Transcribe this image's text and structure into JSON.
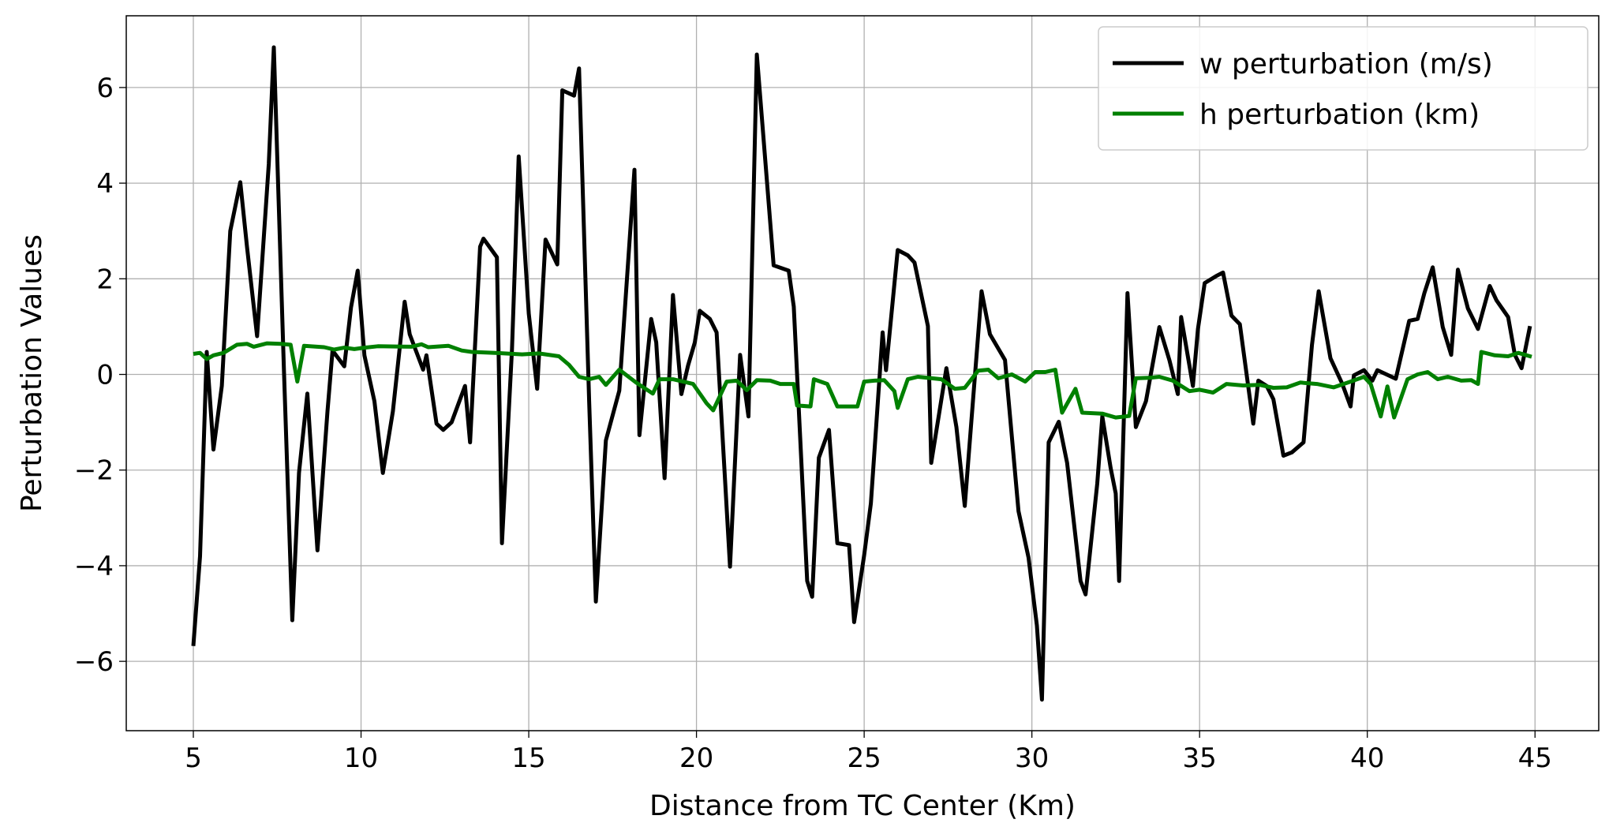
{
  "chart_data": {
    "type": "line",
    "xlabel": "Distance from TC Center (Km)",
    "ylabel": "Perturbation Values",
    "xlim": [
      3.0,
      46.9
    ],
    "ylim": [
      -7.45,
      7.5
    ],
    "xticks": [
      5,
      10,
      15,
      20,
      25,
      30,
      35,
      40,
      45
    ],
    "yticks": [
      {
        "value": -6,
        "label": "−6"
      },
      {
        "value": -4,
        "label": "−4"
      },
      {
        "value": -2,
        "label": "−2"
      },
      0,
      2,
      4,
      6
    ],
    "grid": true,
    "legend": "upper right",
    "series": [
      {
        "name": "w perturbation (m/s)",
        "color": "#000000",
        "x": [
          5,
          5.2,
          5.4,
          5.6,
          5.85,
          6.1,
          6.4,
          6.6,
          6.9,
          7.25,
          7.4,
          7.7,
          7.95,
          8.15,
          8.4,
          8.7,
          9.0,
          9.15,
          9.5,
          9.7,
          9.9,
          10.1,
          10.4,
          10.65,
          10.95,
          11.3,
          11.45,
          11.85,
          11.95,
          12.25,
          12.45,
          12.7,
          13.1,
          13.25,
          13.55,
          13.65,
          14.05,
          14.2,
          14.5,
          14.7,
          15.0,
          15.25,
          15.5,
          15.85,
          16.0,
          16.35,
          16.5,
          16.8,
          17.0,
          17.3,
          17.7,
          18.15,
          18.3,
          18.65,
          18.8,
          19.05,
          19.3,
          19.55,
          19.75,
          19.95,
          20.1,
          20.4,
          20.6,
          21.0,
          21.3,
          21.55,
          21.8,
          22.3,
          22.75,
          22.9,
          23.3,
          23.45,
          23.65,
          23.95,
          24.2,
          24.55,
          24.7,
          25.0,
          25.2,
          25.55,
          25.65,
          26.0,
          26.3,
          26.5,
          26.9,
          27.0,
          27.45,
          27.75,
          28.0,
          28.2,
          28.5,
          28.75,
          29.2,
          29.6,
          29.9,
          30.15,
          30.3,
          30.5,
          30.8,
          31.05,
          31.45,
          31.6,
          31.95,
          32.1,
          32.35,
          32.5,
          32.6,
          32.85,
          33.1,
          33.4,
          33.8,
          34.1,
          34.35,
          34.45,
          34.8,
          34.95,
          35.15,
          35.5,
          35.7,
          35.95,
          36.2,
          36.6,
          36.75,
          37.0,
          37.2,
          37.5,
          37.75,
          38.1,
          38.35,
          38.55,
          38.9,
          39.25,
          39.5,
          39.6,
          39.9,
          40.15,
          40.3,
          40.85,
          41.25,
          41.5,
          41.7,
          41.95,
          42.25,
          42.5,
          42.7,
          43.0,
          43.3,
          43.65,
          43.85,
          44.2,
          44.4,
          44.6,
          44.85
        ],
        "values": [
          -5.68,
          -3.8,
          0.47,
          -1.57,
          -0.24,
          3.0,
          4.02,
          2.67,
          0.8,
          4.4,
          6.84,
          0.1,
          -5.14,
          -2.06,
          -0.4,
          -3.68,
          -0.77,
          0.5,
          0.17,
          1.4,
          2.17,
          0.4,
          -0.56,
          -2.06,
          -0.77,
          1.52,
          0.84,
          0.1,
          0.4,
          -1.03,
          -1.16,
          -1.0,
          -0.24,
          -1.42,
          2.67,
          2.84,
          2.45,
          -3.53,
          0.52,
          4.56,
          1.27,
          -0.3,
          2.82,
          2.3,
          5.94,
          5.83,
          6.4,
          -0.56,
          -4.75,
          -1.38,
          -0.34,
          4.28,
          -1.27,
          1.16,
          0.67,
          -2.17,
          1.66,
          -0.41,
          0.19,
          0.67,
          1.33,
          1.16,
          0.88,
          -4.02,
          0.41,
          -0.88,
          6.69,
          2.28,
          2.17,
          1.42,
          -4.32,
          -4.65,
          -1.74,
          -1.16,
          -3.53,
          -3.57,
          -5.18,
          -3.78,
          -2.7,
          0.88,
          0.09,
          2.6,
          2.49,
          2.34,
          1.01,
          -1.85,
          0.13,
          -1.1,
          -2.75,
          -0.95,
          1.74,
          0.84,
          0.3,
          -2.86,
          -3.83,
          -5.25,
          -6.8,
          -1.42,
          -0.99,
          -1.85,
          -4.32,
          -4.6,
          -2.28,
          -0.88,
          -1.96,
          -2.49,
          -4.32,
          1.7,
          -1.1,
          -0.56,
          0.99,
          0.3,
          -0.41,
          1.2,
          -0.24,
          0.95,
          1.91,
          2.06,
          2.13,
          1.23,
          1.05,
          -1.03,
          -0.13,
          -0.24,
          -0.52,
          -1.7,
          -1.63,
          -1.42,
          0.62,
          1.74,
          0.34,
          -0.19,
          -0.67,
          -0.02,
          0.09,
          -0.13,
          0.09,
          -0.09,
          1.12,
          1.16,
          1.7,
          2.24,
          0.99,
          0.41,
          2.19,
          1.38,
          0.95,
          1.85,
          1.55,
          1.2,
          0.41,
          0.13,
          1.01
        ]
      },
      {
        "name": "h perturbation (km)",
        "color": "#008000",
        "x": [
          5,
          5.2,
          5.4,
          5.6,
          5.9,
          6.3,
          6.6,
          6.8,
          7.2,
          7.6,
          7.9,
          8.1,
          8.3,
          8.9,
          9.2,
          9.5,
          9.8,
          10.1,
          10.5,
          11.5,
          11.8,
          12.0,
          12.6,
          13.0,
          13.3,
          14.0,
          14.8,
          15.3,
          15.9,
          16.2,
          16.5,
          16.8,
          17.1,
          17.3,
          17.7,
          18.2,
          18.7,
          18.9,
          19.3,
          19.9,
          20.3,
          20.5,
          20.9,
          21.2,
          21.5,
          21.8,
          22.2,
          22.5,
          22.9,
          23.0,
          23.4,
          23.5,
          23.9,
          24.2,
          24.8,
          25.0,
          25.3,
          25.6,
          25.9,
          26.0,
          26.3,
          26.6,
          27.3,
          27.7,
          28.0,
          28.4,
          28.7,
          29.0,
          29.4,
          29.8,
          30.1,
          30.4,
          30.7,
          30.9,
          31.3,
          31.5,
          32.1,
          32.5,
          32.9,
          33.1,
          33.5,
          33.8,
          34.2,
          34.7,
          35.0,
          35.4,
          35.8,
          36.3,
          36.8,
          37.2,
          37.6,
          38.0,
          38.5,
          39.0,
          39.5,
          39.9,
          40.1,
          40.4,
          40.6,
          40.8,
          41.2,
          41.5,
          41.8,
          42.1,
          42.4,
          42.8,
          43.1,
          43.3,
          43.4,
          43.8,
          44.2,
          44.5,
          44.9
        ],
        "values": [
          0.43,
          0.45,
          0.32,
          0.4,
          0.45,
          0.62,
          0.64,
          0.58,
          0.65,
          0.64,
          0.62,
          -0.15,
          0.6,
          0.57,
          0.52,
          0.56,
          0.53,
          0.56,
          0.59,
          0.58,
          0.63,
          0.57,
          0.6,
          0.5,
          0.47,
          0.45,
          0.42,
          0.44,
          0.38,
          0.2,
          -0.05,
          -0.1,
          -0.05,
          -0.22,
          0.1,
          -0.17,
          -0.4,
          -0.1,
          -0.1,
          -0.2,
          -0.6,
          -0.75,
          -0.15,
          -0.13,
          -0.33,
          -0.12,
          -0.13,
          -0.2,
          -0.2,
          -0.65,
          -0.67,
          -0.1,
          -0.2,
          -0.67,
          -0.67,
          -0.15,
          -0.13,
          -0.12,
          -0.35,
          -0.7,
          -0.1,
          -0.05,
          -0.1,
          -0.3,
          -0.28,
          0.08,
          0.1,
          -0.08,
          0.0,
          -0.15,
          0.05,
          0.05,
          0.1,
          -0.8,
          -0.3,
          -0.8,
          -0.82,
          -0.9,
          -0.87,
          -0.08,
          -0.07,
          -0.05,
          -0.13,
          -0.35,
          -0.32,
          -0.38,
          -0.2,
          -0.23,
          -0.22,
          -0.28,
          -0.27,
          -0.17,
          -0.2,
          -0.27,
          -0.15,
          -0.05,
          -0.2,
          -0.88,
          -0.25,
          -0.9,
          -0.1,
          0.0,
          0.05,
          -0.1,
          -0.05,
          -0.13,
          -0.12,
          -0.2,
          0.47,
          0.4,
          0.38,
          0.45,
          0.37
        ]
      }
    ]
  }
}
